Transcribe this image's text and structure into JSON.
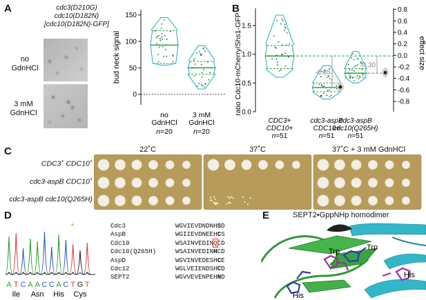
{
  "panels": {
    "a": "A",
    "b": "B",
    "c": "C",
    "d": "D",
    "e": "E"
  },
  "panel_a": {
    "genotype": [
      "cdc3(D210G)",
      "cdc10(D182N)",
      "[cdc10(D182N)-GFP]"
    ],
    "row_labels": [
      [
        "no",
        "GdnHCl"
      ],
      [
        "3 mM",
        "GdnHCl"
      ]
    ],
    "chart_data": {
      "type": "violin",
      "ylabel": "bud neck signal",
      "ylim": [
        -20,
        160
      ],
      "yticks": [
        0,
        50,
        100,
        150
      ],
      "categories": [
        [
          "no",
          "GdnHCl"
        ],
        [
          "3 mM",
          "GdnHCl"
        ]
      ],
      "n_labels": [
        "n=20",
        "n=20"
      ],
      "reference_line": 0,
      "series": [
        {
          "median": 93,
          "quartiles": [
            58,
            120
          ],
          "range": [
            55,
            145
          ]
        },
        {
          "median": 50,
          "quartiles": [
            38,
            62
          ],
          "range": [
            10,
            92
          ]
        }
      ]
    }
  },
  "panel_b": {
    "chart_data": {
      "type": "violin",
      "ylabel": "ratio Cdc10-mCherry/Shs1-GFP",
      "ylabel_right": "effect size",
      "ylim": [
        0,
        1.8
      ],
      "yticks": [
        0,
        0.5,
        1.0,
        1.5
      ],
      "right_ylim": [
        -0.98,
        0.82
      ],
      "right_yticks": [
        -0.8,
        -0.6,
        -0.4,
        -0.2,
        0.0,
        0.2,
        0.4,
        0.6,
        0.8
      ],
      "categories": [
        [
          "CDC3+",
          "CDC10+"
        ],
        [
          "cdc3-aspB",
          "CDC10+"
        ],
        [
          "cdc3-aspB",
          "cdc10(Q265H)"
        ]
      ],
      "n_labels": [
        "n=51",
        "n=51",
        "n=51"
      ],
      "series": [
        {
          "median": 0.97,
          "quartiles": [
            0.75,
            1.15
          ],
          "range": [
            0.6,
            1.68
          ]
        },
        {
          "median": 0.42,
          "quartiles": [
            0.35,
            0.5
          ],
          "range": [
            0.22,
            0.8
          ]
        },
        {
          "median": 0.67,
          "quartiles": [
            0.6,
            0.75
          ],
          "range": [
            0.5,
            1.05
          ]
        }
      ],
      "effect_sizes": [
        {
          "label": "-0.55",
          "value": -0.55,
          "ci": [
            -0.63,
            -0.47
          ]
        },
        {
          "label": "-0.30",
          "value": -0.3,
          "ci": [
            -0.36,
            -0.22
          ]
        }
      ]
    }
  },
  "panel_c": {
    "conditions": [
      "22˚C",
      "37˚C",
      "37˚C + 3 mM GdnHCl"
    ],
    "strains": [
      [
        "CDC3",
        "+",
        " CDC10",
        "+"
      ],
      [
        "cdc3-aspB",
        "",
        " CDC10",
        "+"
      ],
      [
        "cdc3-aspB",
        "",
        " cdc10(Q265H)",
        ""
      ]
    ],
    "growth": [
      [
        [
          5,
          5,
          5,
          5,
          5,
          5
        ],
        [
          5,
          5,
          5,
          5,
          5,
          5
        ],
        [
          5,
          5,
          5,
          5,
          5,
          5
        ]
      ],
      [
        [
          5,
          5,
          5,
          5,
          5,
          5
        ],
        [
          0,
          0,
          0,
          0,
          0,
          0
        ],
        [
          3,
          2,
          1,
          0,
          0,
          0
        ]
      ],
      [
        [
          5,
          5,
          5,
          5,
          5,
          5
        ],
        [
          5,
          5,
          5,
          5,
          5,
          5
        ],
        [
          5,
          5,
          5,
          5,
          5,
          5
        ]
      ]
    ]
  },
  "panel_d": {
    "bases": [
      "A",
      "T",
      "C",
      "A",
      "A",
      "C",
      "C",
      "A",
      "C",
      "T",
      "G",
      "T"
    ],
    "base_colors": {
      "A": "#2aa02a",
      "T": "#e23b3b",
      "C": "#2857c9",
      "G": "#222222"
    },
    "amino_acids": [
      "Ile",
      "Asn",
      "His",
      "Cys"
    ],
    "alignment": [
      {
        "name": "Cdc3",
        "pre": "WGVIEVDNDNH",
        "mid": "S",
        "post": "D",
        "mid_color": "#111"
      },
      {
        "name": "AspB",
        "pre": "WGIIEVDNEEH",
        "mid": "C",
        "post": "S",
        "mid_color": "#111"
      },
      {
        "name": "Cdc10",
        "pre": "WSAINVEDIN",
        "mid": "Q",
        "post": "CD",
        "mid_color": "#e23b3b",
        "boxed": true
      },
      {
        "name": "Cdc10(Q265H)",
        "pre": "WSAINVEDIN",
        "mid": "H",
        "post": "CD",
        "mid_color": "#111"
      },
      {
        "name": "AspD",
        "pre": "WGVINVEDESH",
        "mid": "C",
        "post": "E",
        "mid_color": "#111"
      },
      {
        "name": "Cdc12",
        "pre": "WGLVEIENDSH",
        "mid": "C",
        "post": "D",
        "mid_color": "#111"
      },
      {
        "name": "SEPT2",
        "pre": "WGVVEVENPEH",
        "mid": "N",
        "post": "D",
        "mid_color": "#111"
      }
    ]
  },
  "panel_e": {
    "title": "SEPT2•GppNHp homodimer",
    "labels": [
      "Trp",
      "Trp",
      "His",
      "His"
    ]
  },
  "colors": {
    "violin": "#2bb5c8",
    "median": "#27a845",
    "dot": "#1b6a2d",
    "ci": "#9e9e9e",
    "plate_bg": "#b79b5a"
  }
}
